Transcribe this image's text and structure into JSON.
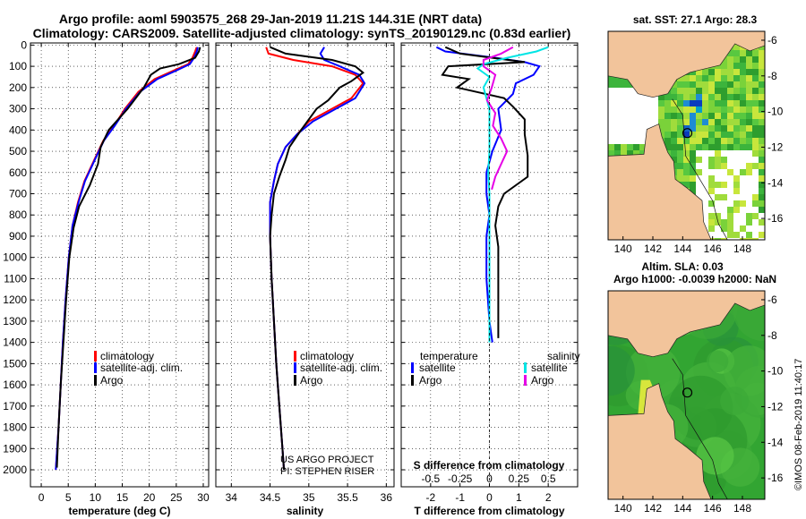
{
  "header": {
    "line1": "Argo profile: aoml 5903575_268 29-Jan-2019 11.21S 144.31E (NRT data)",
    "line2": "Climatology: CARS2009. Satellite-adjusted climatology: synTS_20190129.nc (0.83d earlier)"
  },
  "colors": {
    "climatology": "#ff0000",
    "satellite": "#0000ff",
    "argo": "#000000",
    "clim_salinity_diff": "#00e5e5",
    "argo_salinity_diff": "#e600e6",
    "land": "#f2c49b"
  },
  "depth_axis": {
    "ticks": [
      0,
      100,
      200,
      300,
      400,
      500,
      600,
      700,
      800,
      900,
      1000,
      1100,
      1200,
      1300,
      1400,
      1500,
      1600,
      1700,
      1800,
      1900,
      2000
    ],
    "labels": [
      "0",
      "100",
      "200",
      "300",
      "400",
      "500",
      "600",
      "700",
      "800",
      "900",
      "1000",
      "1100",
      "1200",
      "1300",
      "1400",
      "1500",
      "1600",
      "1700",
      "1800",
      "1900",
      "2000"
    ]
  },
  "legend_left": {
    "climatology": "climatology",
    "satellite": "satellite-adj. clim.",
    "argo": "Argo"
  },
  "legend_right": {
    "temperature": "temperature",
    "salinity": "salinity",
    "satellite": "satellite",
    "argo": "Argo"
  },
  "project_text": {
    "line1": "US ARGO PROJECT",
    "line2": "PI: STEPHEN RISER"
  },
  "s_diff_title": "S difference from climatology",
  "maps": {
    "top_title": "sat. SST: 27.1 Argo: 28.3",
    "bottom_title1": "Altim. SLA: 0.03",
    "bottom_title2": "Argo h1000: -0.0039 h2000: NaN",
    "lon_labels": [
      "140",
      "142",
      "144",
      "146",
      "148"
    ],
    "lat_labels": [
      "-6",
      "-8",
      "-10",
      "-12",
      "-14",
      "-16"
    ],
    "argo_location": {
      "lon": 144.31,
      "lat": -11.21
    }
  },
  "footer": "©IMOS 08-Feb-2019 11:40:17",
  "chart_data": [
    {
      "type": "line",
      "title": "",
      "xlabel": "temperature (deg C)",
      "ylabel": "depth",
      "xlim": [
        -2,
        31
      ],
      "ylim": [
        2080,
        -10
      ],
      "xticks": [
        0,
        5,
        10,
        15,
        20,
        25,
        30
      ],
      "xtick_labels": [
        "0",
        "5",
        "10",
        "15",
        "20",
        "25",
        "30"
      ],
      "series": [
        {
          "name": "climatology",
          "color_key": "climatology",
          "points": [
            [
              28.8,
              10
            ],
            [
              28.5,
              30
            ],
            [
              28.0,
              60
            ],
            [
              27.2,
              90
            ],
            [
              24.5,
              120
            ],
            [
              21.0,
              160
            ],
            [
              18.0,
              220
            ],
            [
              15.5,
              300
            ],
            [
              13.5,
              380
            ],
            [
              11.5,
              450
            ],
            [
              10.0,
              530
            ],
            [
              8.0,
              640
            ],
            [
              6.8,
              740
            ],
            [
              5.8,
              850
            ],
            [
              5.1,
              1000
            ],
            [
              4.5,
              1200
            ],
            [
              4.0,
              1400
            ],
            [
              3.6,
              1600
            ],
            [
              3.2,
              1800
            ],
            [
              2.7,
              2000
            ]
          ]
        },
        {
          "name": "satellite-adj. clim.",
          "color_key": "satellite",
          "points": [
            [
              29.0,
              10
            ],
            [
              28.8,
              30
            ],
            [
              28.3,
              60
            ],
            [
              27.5,
              90
            ],
            [
              25.0,
              120
            ],
            [
              21.5,
              160
            ],
            [
              18.3,
              220
            ],
            [
              15.7,
              300
            ],
            [
              13.6,
              380
            ],
            [
              11.6,
              450
            ],
            [
              10.1,
              530
            ],
            [
              8.1,
              640
            ],
            [
              6.9,
              740
            ],
            [
              5.8,
              850
            ],
            [
              5.1,
              1000
            ],
            [
              4.5,
              1200
            ],
            [
              4.0,
              1400
            ],
            [
              3.6,
              1600
            ],
            [
              3.2,
              1800
            ],
            [
              2.7,
              2000
            ]
          ]
        },
        {
          "name": "Argo",
          "color_key": "argo",
          "points": [
            [
              29.4,
              10
            ],
            [
              29.2,
              30
            ],
            [
              28.5,
              60
            ],
            [
              25.5,
              90
            ],
            [
              22.0,
              110
            ],
            [
              20.3,
              140
            ],
            [
              19.0,
              200
            ],
            [
              16.0,
              300
            ],
            [
              12.5,
              400
            ],
            [
              11.0,
              480
            ],
            [
              10.5,
              560
            ],
            [
              9.0,
              660
            ],
            [
              7.0,
              760
            ],
            [
              6.0,
              860
            ],
            [
              5.2,
              1000
            ],
            [
              4.6,
              1200
            ],
            [
              4.1,
              1400
            ],
            [
              3.6,
              1600
            ],
            [
              3.2,
              1800
            ],
            [
              2.9,
              1990
            ]
          ]
        }
      ]
    },
    {
      "type": "line",
      "title": "",
      "xlabel": "salinity",
      "ylabel": "depth",
      "xlim": [
        33.8,
        36.1
      ],
      "ylim": [
        2080,
        -10
      ],
      "xticks": [
        34,
        34.5,
        35,
        35.5,
        36
      ],
      "xtick_labels": [
        "34",
        "34.5",
        "35",
        "35.5",
        "36"
      ],
      "series": [
        {
          "name": "climatology",
          "color_key": "climatology",
          "points": [
            [
              34.45,
              10
            ],
            [
              34.48,
              40
            ],
            [
              34.8,
              70
            ],
            [
              35.3,
              100
            ],
            [
              35.6,
              140
            ],
            [
              35.7,
              180
            ],
            [
              35.55,
              250
            ],
            [
              35.25,
              310
            ],
            [
              35.0,
              360
            ],
            [
              34.85,
              420
            ],
            [
              34.7,
              480
            ],
            [
              34.6,
              560
            ],
            [
              34.55,
              640
            ],
            [
              34.5,
              740
            ],
            [
              34.5,
              900
            ],
            [
              34.52,
              1100
            ],
            [
              34.55,
              1300
            ],
            [
              34.58,
              1500
            ],
            [
              34.62,
              1700
            ],
            [
              34.66,
              1900
            ],
            [
              34.68,
              2000
            ]
          ]
        },
        {
          "name": "satellite-adj. clim.",
          "color_key": "satellite",
          "points": [
            [
              35.2,
              10
            ],
            [
              35.15,
              40
            ],
            [
              35.2,
              70
            ],
            [
              35.4,
              100
            ],
            [
              35.65,
              140
            ],
            [
              35.72,
              180
            ],
            [
              35.6,
              250
            ],
            [
              35.3,
              310
            ],
            [
              35.05,
              360
            ],
            [
              34.85,
              420
            ],
            [
              34.7,
              480
            ],
            [
              34.6,
              560
            ],
            [
              34.55,
              640
            ],
            [
              34.5,
              740
            ],
            [
              34.5,
              900
            ],
            [
              34.52,
              1100
            ],
            [
              34.55,
              1300
            ],
            [
              34.58,
              1500
            ],
            [
              34.62,
              1700
            ],
            [
              34.66,
              1900
            ],
            [
              34.68,
              2000
            ]
          ]
        },
        {
          "name": "Argo",
          "color_key": "argo",
          "points": [
            [
              34.5,
              10
            ],
            [
              34.7,
              40
            ],
            [
              35.3,
              70
            ],
            [
              35.6,
              100
            ],
            [
              35.7,
              130
            ],
            [
              35.55,
              170
            ],
            [
              35.4,
              200
            ],
            [
              35.25,
              260
            ],
            [
              35.1,
              300
            ],
            [
              34.9,
              400
            ],
            [
              34.75,
              480
            ],
            [
              34.7,
              540
            ],
            [
              34.62,
              620
            ],
            [
              34.55,
              700
            ],
            [
              34.52,
              800
            ],
            [
              34.5,
              900
            ],
            [
              34.52,
              1100
            ],
            [
              34.55,
              1300
            ],
            [
              34.58,
              1500
            ],
            [
              34.62,
              1700
            ],
            [
              34.66,
              1900
            ],
            [
              34.68,
              2000
            ]
          ]
        }
      ]
    },
    {
      "type": "line",
      "title": "S difference from climatology",
      "xlabel": "T difference from climatology",
      "ylabel": "depth",
      "xlim": [
        -3,
        3
      ],
      "ylim": [
        2080,
        -10
      ],
      "xticks": [
        -2,
        -1,
        0,
        1,
        2
      ],
      "xtick_labels": [
        "-2",
        "-1",
        "0",
        "1",
        "2"
      ],
      "secondary_xticks": [
        -0.5,
        -0.25,
        0,
        0.25,
        0.5
      ],
      "secondary_xtick_labels": [
        "-0.5",
        "-0.25",
        "0",
        "0.25",
        "0.5"
      ],
      "series": [
        {
          "name": "temperature satellite",
          "color_key": "satellite",
          "points": [
            [
              -1.8,
              10
            ],
            [
              -1.5,
              30
            ],
            [
              0.2,
              60
            ],
            [
              1.2,
              80
            ],
            [
              1.7,
              100
            ],
            [
              1.5,
              140
            ],
            [
              0.9,
              180
            ],
            [
              0.8,
              230
            ],
            [
              0.3,
              300
            ],
            [
              0.4,
              400
            ],
            [
              0.1,
              500
            ],
            [
              -0.1,
              600
            ],
            [
              -0.1,
              700
            ],
            [
              0.0,
              800
            ],
            [
              -0.1,
              900
            ],
            [
              -0.1,
              1100
            ],
            [
              0.0,
              1300
            ],
            [
              0.1,
              1400
            ]
          ]
        },
        {
          "name": "temperature Argo",
          "color_key": "argo",
          "points": [
            [
              -1.5,
              10
            ],
            [
              -1.0,
              40
            ],
            [
              1.2,
              80
            ],
            [
              -1.4,
              100
            ],
            [
              -1.6,
              140
            ],
            [
              -0.7,
              160
            ],
            [
              -1.1,
              200
            ],
            [
              0.5,
              250
            ],
            [
              0.8,
              290
            ],
            [
              1.2,
              350
            ],
            [
              1.2,
              420
            ],
            [
              1.3,
              520
            ],
            [
              1.3,
              620
            ],
            [
              0.5,
              700
            ],
            [
              0.3,
              760
            ],
            [
              0.2,
              850
            ],
            [
              0.3,
              950
            ],
            [
              0.3,
              1100
            ],
            [
              0.3,
              1300
            ],
            [
              0.3,
              1380
            ]
          ]
        },
        {
          "name": "salinity satellite",
          "color_key": "clim_salinity_diff",
          "points": [
            [
              0.5,
              10
            ],
            [
              0.4,
              30
            ],
            [
              0.15,
              60
            ],
            [
              -0.05,
              90
            ],
            [
              -0.1,
              110
            ],
            [
              0.0,
              150
            ],
            [
              -0.05,
              200
            ],
            [
              0.0,
              300
            ],
            [
              0.0,
              400
            ],
            [
              0.0,
              500
            ],
            [
              -0.01,
              600
            ],
            [
              0.0,
              700
            ],
            [
              0.0,
              800
            ],
            [
              0.0,
              900
            ],
            [
              0.0,
              1100
            ],
            [
              0.0,
              1300
            ],
            [
              0.0,
              1400
            ]
          ]
        },
        {
          "name": "salinity Argo",
          "color_key": "argo_salinity_diff",
          "points": [
            [
              0.2,
              10
            ],
            [
              0.1,
              40
            ],
            [
              -0.05,
              70
            ],
            [
              -0.05,
              100
            ],
            [
              0.05,
              140
            ],
            [
              0.02,
              200
            ],
            [
              -0.02,
              260
            ],
            [
              0.05,
              320
            ],
            [
              0.03,
              380
            ],
            [
              0.1,
              440
            ],
            [
              0.15,
              500
            ],
            [
              0.1,
              560
            ],
            [
              0.05,
              620
            ],
            [
              0.02,
              680
            ]
          ]
        }
      ]
    }
  ]
}
